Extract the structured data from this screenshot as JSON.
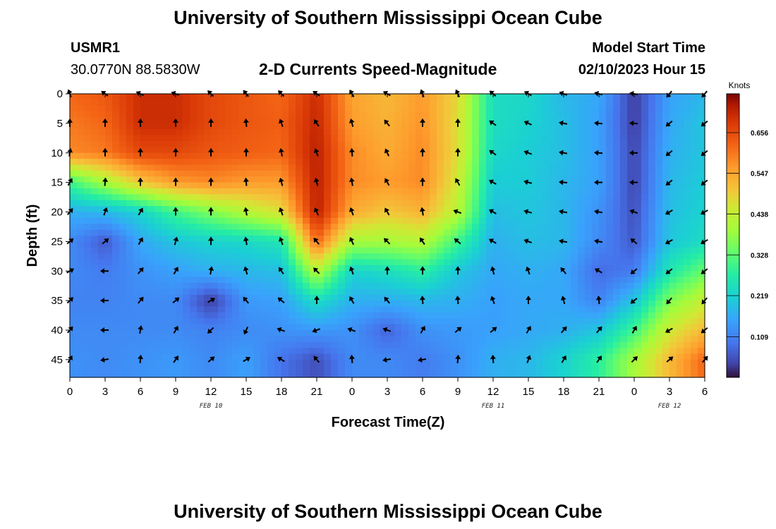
{
  "header": {
    "title": "University of Southern Mississippi Ocean Cube",
    "station": "USMR1",
    "coords": "30.0770N  88.5830W",
    "subtitle": "2-D Currents Speed-Magnitude",
    "model_label": "Model Start Time",
    "model_time": "02/10/2023 Hour 15"
  },
  "footer": {
    "title": "University of Southern Mississippi Ocean Cube"
  },
  "chart_data": {
    "type": "heatmap",
    "title": "2-D Currents Speed-Magnitude",
    "xlabel": "Forecast Time(Z)",
    "ylabel": "Depth (ft)",
    "colorbar_label": "Knots",
    "x": [
      0,
      3,
      6,
      9,
      12,
      15,
      18,
      21,
      24,
      27,
      30,
      33,
      36,
      39,
      42,
      45,
      48,
      51,
      54
    ],
    "xtick_labels": [
      "0",
      "3",
      "6",
      "9",
      "12",
      "15",
      "18",
      "21",
      "0",
      "3",
      "6",
      "9",
      "12",
      "15",
      "18",
      "21",
      "0",
      "3",
      "6"
    ],
    "date_labels": [
      {
        "x": 12,
        "label": "FEB 10"
      },
      {
        "x": 36,
        "label": "FEB 11"
      },
      {
        "x": 51,
        "label": "FEB 12"
      }
    ],
    "yticks": [
      0,
      5,
      10,
      15,
      20,
      25,
      30,
      35,
      40,
      45
    ],
    "ylim": [
      0,
      48
    ],
    "xlim": [
      0,
      54
    ],
    "colorbar_ticks": [
      0.109,
      0.219,
      0.328,
      0.438,
      0.547,
      0.656
    ],
    "colorbar_range": [
      0,
      0.76
    ],
    "grid": false,
    "rows_depth_ft": [
      0,
      5,
      10,
      15,
      20,
      25,
      30,
      35,
      40,
      45
    ],
    "speed_knots": [
      [
        0.62,
        0.64,
        0.7,
        0.7,
        0.66,
        0.64,
        0.62,
        0.7,
        0.55,
        0.52,
        0.56,
        0.48,
        0.24,
        0.23,
        0.18,
        0.16,
        0.03,
        0.15,
        0.18
      ],
      [
        0.6,
        0.62,
        0.7,
        0.7,
        0.66,
        0.64,
        0.63,
        0.71,
        0.56,
        0.53,
        0.57,
        0.47,
        0.24,
        0.22,
        0.19,
        0.15,
        0.03,
        0.16,
        0.2
      ],
      [
        0.58,
        0.6,
        0.66,
        0.66,
        0.64,
        0.63,
        0.62,
        0.72,
        0.58,
        0.54,
        0.58,
        0.47,
        0.23,
        0.21,
        0.19,
        0.15,
        0.04,
        0.17,
        0.2
      ],
      [
        0.3,
        0.4,
        0.5,
        0.56,
        0.58,
        0.56,
        0.56,
        0.72,
        0.58,
        0.56,
        0.58,
        0.45,
        0.21,
        0.21,
        0.18,
        0.15,
        0.04,
        0.18,
        0.21
      ],
      [
        0.17,
        0.18,
        0.22,
        0.3,
        0.36,
        0.42,
        0.47,
        0.72,
        0.54,
        0.5,
        0.53,
        0.42,
        0.19,
        0.2,
        0.18,
        0.13,
        0.05,
        0.19,
        0.22
      ],
      [
        0.12,
        0.06,
        0.16,
        0.2,
        0.22,
        0.23,
        0.26,
        0.62,
        0.4,
        0.4,
        0.42,
        0.3,
        0.17,
        0.19,
        0.18,
        0.12,
        0.06,
        0.2,
        0.24
      ],
      [
        0.12,
        0.1,
        0.13,
        0.15,
        0.17,
        0.18,
        0.19,
        0.42,
        0.22,
        0.24,
        0.28,
        0.2,
        0.16,
        0.17,
        0.16,
        0.08,
        0.1,
        0.26,
        0.34
      ],
      [
        0.11,
        0.11,
        0.12,
        0.12,
        0.03,
        0.14,
        0.15,
        0.24,
        0.17,
        0.17,
        0.18,
        0.17,
        0.15,
        0.16,
        0.16,
        0.11,
        0.2,
        0.36,
        0.44
      ],
      [
        0.12,
        0.12,
        0.12,
        0.12,
        0.11,
        0.12,
        0.13,
        0.14,
        0.13,
        0.07,
        0.13,
        0.14,
        0.15,
        0.16,
        0.17,
        0.2,
        0.3,
        0.45,
        0.52
      ],
      [
        0.13,
        0.12,
        0.13,
        0.14,
        0.12,
        0.15,
        0.09,
        0.05,
        0.12,
        0.12,
        0.1,
        0.13,
        0.17,
        0.18,
        0.22,
        0.28,
        0.4,
        0.52,
        0.62
      ]
    ],
    "arrow_direction_deg": [
      [
        250,
        215,
        205,
        200,
        225,
        230,
        225,
        215,
        240,
        210,
        250,
        245,
        220,
        210,
        200,
        195,
        190,
        130,
        130
      ],
      [
        270,
        270,
        270,
        270,
        270,
        265,
        250,
        235,
        255,
        230,
        270,
        270,
        215,
        205,
        190,
        185,
        185,
        140,
        140
      ],
      [
        280,
        270,
        270,
        270,
        270,
        270,
        260,
        250,
        265,
        245,
        270,
        270,
        215,
        200,
        190,
        185,
        180,
        140,
        140
      ],
      [
        300,
        275,
        270,
        270,
        270,
        265,
        255,
        255,
        260,
        240,
        270,
        240,
        210,
        195,
        185,
        180,
        180,
        140,
        140
      ],
      [
        310,
        290,
        300,
        270,
        270,
        260,
        250,
        245,
        250,
        240,
        260,
        200,
        210,
        195,
        190,
        190,
        200,
        150,
        150
      ],
      [
        320,
        320,
        300,
        285,
        270,
        260,
        250,
        230,
        245,
        225,
        235,
        220,
        210,
        200,
        190,
        190,
        220,
        150,
        150
      ],
      [
        330,
        180,
        310,
        300,
        280,
        255,
        235,
        225,
        250,
        270,
        270,
        270,
        255,
        250,
        230,
        210,
        140,
        140,
        140
      ],
      [
        315,
        180,
        310,
        320,
        330,
        230,
        220,
        270,
        240,
        230,
        265,
        265,
        250,
        270,
        255,
        265,
        140,
        130,
        130
      ],
      [
        310,
        180,
        280,
        300,
        135,
        115,
        200,
        160,
        200,
        200,
        300,
        320,
        320,
        300,
        310,
        310,
        300,
        150,
        140
      ],
      [
        300,
        170,
        275,
        305,
        320,
        330,
        210,
        230,
        265,
        170,
        170,
        275,
        265,
        290,
        300,
        305,
        315,
        320,
        310
      ]
    ]
  }
}
